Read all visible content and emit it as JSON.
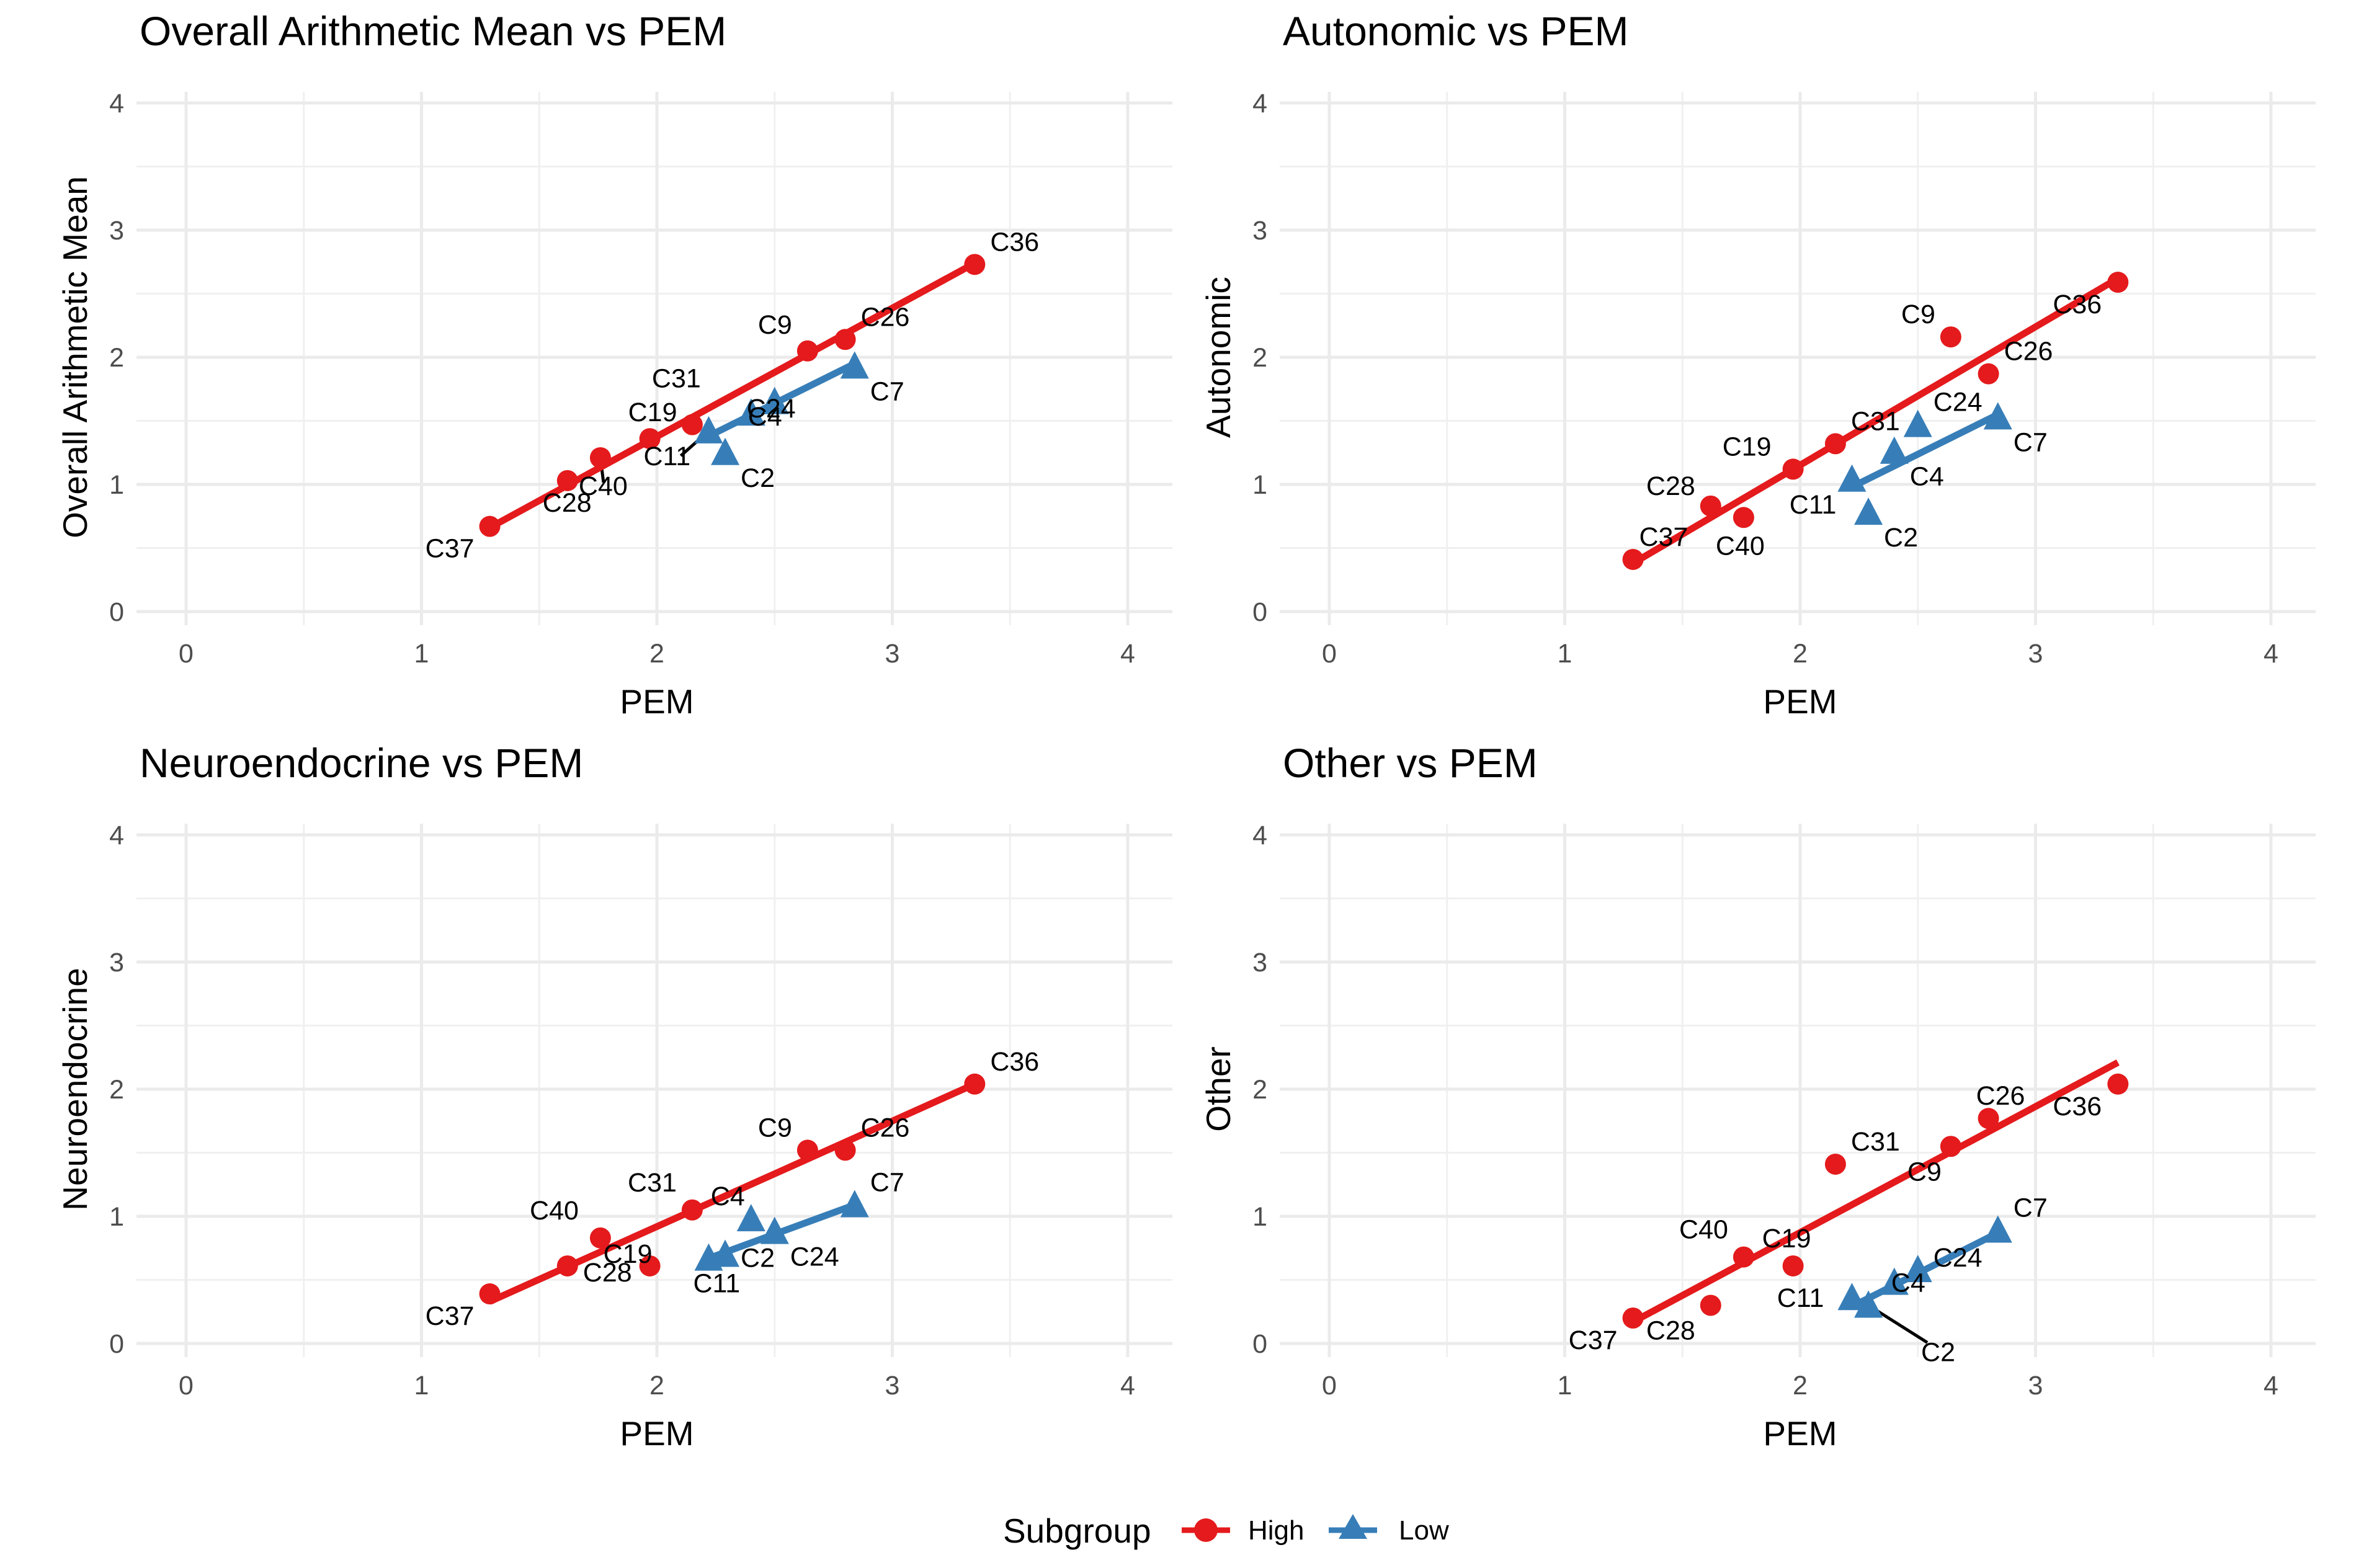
{
  "chart_data": [
    {
      "type": "scatter",
      "title": "Overall Arithmetic Mean vs PEM",
      "xlabel": "PEM",
      "ylabel": "Overall Arithmetic Mean",
      "xlim": [
        0,
        4
      ],
      "ylim": [
        0,
        4
      ],
      "xticks": [
        "0",
        "1",
        "2",
        "3",
        "4"
      ],
      "yticks": [
        "0",
        "1",
        "2",
        "3",
        "4"
      ],
      "series": [
        {
          "name": "High",
          "color": "#e41a1c",
          "marker": "circle",
          "fit": {
            "x": [
              1.29,
              3.35
            ],
            "y": [
              0.66,
              2.74
            ]
          },
          "points": [
            {
              "label": "C37",
              "x": 1.29,
              "y": 0.67
            },
            {
              "label": "C28",
              "x": 1.62,
              "y": 1.03
            },
            {
              "label": "C40",
              "x": 1.76,
              "y": 1.21
            },
            {
              "label": "C19",
              "x": 1.97,
              "y": 1.36
            },
            {
              "label": "C31",
              "x": 2.15,
              "y": 1.47
            },
            {
              "label": "C9",
              "x": 2.64,
              "y": 2.05
            },
            {
              "label": "C26",
              "x": 2.8,
              "y": 2.14
            },
            {
              "label": "C36",
              "x": 3.35,
              "y": 2.73
            }
          ]
        },
        {
          "name": "Low",
          "color": "#377eb8",
          "marker": "triangle",
          "fit": {
            "x": [
              2.22,
              2.84
            ],
            "y": [
              1.38,
              1.95
            ]
          },
          "points": [
            {
              "label": "C11",
              "x": 2.22,
              "y": 1.42
            },
            {
              "label": "C2",
              "x": 2.29,
              "y": 1.25
            },
            {
              "label": "C4",
              "x": 2.4,
              "y": 1.56
            },
            {
              "label": "C24",
              "x": 2.5,
              "y": 1.65
            },
            {
              "label": "C7",
              "x": 2.84,
              "y": 1.93
            }
          ]
        }
      ]
    },
    {
      "type": "scatter",
      "title": "Autonomic vs PEM",
      "xlabel": "PEM",
      "ylabel": "Autonomic",
      "xlim": [
        0,
        4
      ],
      "ylim": [
        0,
        4
      ],
      "xticks": [
        "0",
        "1",
        "2",
        "3",
        "4"
      ],
      "yticks": [
        "0",
        "1",
        "2",
        "3",
        "4"
      ],
      "series": [
        {
          "name": "High",
          "color": "#e41a1c",
          "marker": "circle",
          "fit": {
            "x": [
              1.29,
              3.35
            ],
            "y": [
              0.38,
              2.62
            ]
          },
          "points": [
            {
              "label": "C37",
              "x": 1.29,
              "y": 0.41
            },
            {
              "label": "C28",
              "x": 1.62,
              "y": 0.83
            },
            {
              "label": "C40",
              "x": 1.76,
              "y": 0.74
            },
            {
              "label": "C19",
              "x": 1.97,
              "y": 1.12
            },
            {
              "label": "C31",
              "x": 2.15,
              "y": 1.32
            },
            {
              "label": "C9",
              "x": 2.64,
              "y": 2.16
            },
            {
              "label": "C26",
              "x": 2.8,
              "y": 1.87
            },
            {
              "label": "C36",
              "x": 3.35,
              "y": 2.59
            }
          ]
        },
        {
          "name": "Low",
          "color": "#377eb8",
          "marker": "triangle",
          "fit": {
            "x": [
              2.22,
              2.84
            ],
            "y": [
              0.98,
              1.55
            ]
          },
          "points": [
            {
              "label": "C11",
              "x": 2.22,
              "y": 1.04
            },
            {
              "label": "C2",
              "x": 2.29,
              "y": 0.78
            },
            {
              "label": "C4",
              "x": 2.4,
              "y": 1.26
            },
            {
              "label": "C24",
              "x": 2.5,
              "y": 1.47
            },
            {
              "label": "C7",
              "x": 2.84,
              "y": 1.53
            }
          ]
        }
      ]
    },
    {
      "type": "scatter",
      "title": "Neuroendocrine vs PEM",
      "xlabel": "PEM",
      "ylabel": "Neuroendocrine",
      "xlim": [
        0,
        4
      ],
      "ylim": [
        0,
        4
      ],
      "xticks": [
        "0",
        "1",
        "2",
        "3",
        "4"
      ],
      "yticks": [
        "0",
        "1",
        "2",
        "3",
        "4"
      ],
      "series": [
        {
          "name": "High",
          "color": "#e41a1c",
          "marker": "circle",
          "fit": {
            "x": [
              1.29,
              3.35
            ],
            "y": [
              0.33,
              2.04
            ]
          },
          "points": [
            {
              "label": "C37",
              "x": 1.29,
              "y": 0.39
            },
            {
              "label": "C28",
              "x": 1.62,
              "y": 0.61
            },
            {
              "label": "C40",
              "x": 1.76,
              "y": 0.83
            },
            {
              "label": "C19",
              "x": 1.97,
              "y": 0.61
            },
            {
              "label": "C31",
              "x": 2.15,
              "y": 1.05
            },
            {
              "label": "C9",
              "x": 2.64,
              "y": 1.52
            },
            {
              "label": "C26",
              "x": 2.8,
              "y": 1.52
            },
            {
              "label": "C36",
              "x": 3.35,
              "y": 2.04
            }
          ]
        },
        {
          "name": "Low",
          "color": "#377eb8",
          "marker": "triangle",
          "fit": {
            "x": [
              2.22,
              2.84
            ],
            "y": [
              0.67,
              1.09
            ]
          },
          "points": [
            {
              "label": "C11",
              "x": 2.22,
              "y": 0.67
            },
            {
              "label": "C2",
              "x": 2.29,
              "y": 0.7
            },
            {
              "label": "C4",
              "x": 2.4,
              "y": 0.98
            },
            {
              "label": "C24",
              "x": 2.5,
              "y": 0.88
            },
            {
              "label": "C7",
              "x": 2.84,
              "y": 1.09
            }
          ]
        }
      ]
    },
    {
      "type": "scatter",
      "title": "Other vs PEM",
      "xlabel": "PEM",
      "ylabel": "Other",
      "xlim": [
        0,
        4
      ],
      "ylim": [
        0,
        4
      ],
      "xticks": [
        "0",
        "1",
        "2",
        "3",
        "4"
      ],
      "yticks": [
        "0",
        "1",
        "2",
        "3",
        "4"
      ],
      "series": [
        {
          "name": "High",
          "color": "#e41a1c",
          "marker": "circle",
          "fit": {
            "x": [
              1.29,
              3.35
            ],
            "y": [
              0.17,
              2.21
            ]
          },
          "points": [
            {
              "label": "C37",
              "x": 1.29,
              "y": 0.2
            },
            {
              "label": "C28",
              "x": 1.62,
              "y": 0.3
            },
            {
              "label": "C40",
              "x": 1.76,
              "y": 0.68
            },
            {
              "label": "C19",
              "x": 1.97,
              "y": 0.61
            },
            {
              "label": "C31",
              "x": 2.15,
              "y": 1.41
            },
            {
              "label": "C9",
              "x": 2.64,
              "y": 1.55
            },
            {
              "label": "C26",
              "x": 2.8,
              "y": 1.77
            },
            {
              "label": "C36",
              "x": 3.35,
              "y": 2.04
            }
          ]
        },
        {
          "name": "Low",
          "color": "#377eb8",
          "marker": "triangle",
          "fit": {
            "x": [
              2.22,
              2.84
            ],
            "y": [
              0.29,
              0.87
            ]
          },
          "points": [
            {
              "label": "C11",
              "x": 2.22,
              "y": 0.36
            },
            {
              "label": "C2",
              "x": 2.29,
              "y": 0.3
            },
            {
              "label": "C4",
              "x": 2.4,
              "y": 0.48
            },
            {
              "label": "C24",
              "x": 2.5,
              "y": 0.58
            },
            {
              "label": "C7",
              "x": 2.84,
              "y": 0.89
            }
          ]
        }
      ]
    }
  ],
  "legend": {
    "title": "Subgroup",
    "items": [
      {
        "label": "High",
        "color": "#e41a1c",
        "marker": "circle"
      },
      {
        "label": "Low",
        "color": "#377eb8",
        "marker": "triangle"
      }
    ]
  }
}
